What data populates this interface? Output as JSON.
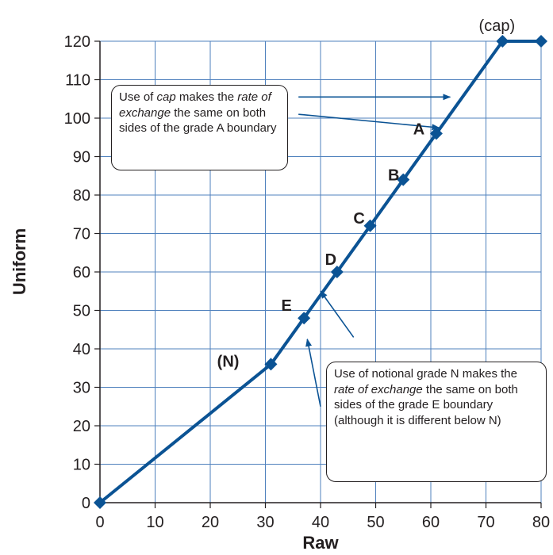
{
  "chart_data": {
    "type": "line",
    "xlabel": "Raw",
    "ylabel": "Uniform",
    "xlim": [
      0,
      80
    ],
    "ylim": [
      0,
      120
    ],
    "xticks": [
      0,
      10,
      20,
      30,
      40,
      50,
      60,
      70,
      80
    ],
    "yticks": [
      0,
      10,
      20,
      30,
      40,
      50,
      60,
      70,
      80,
      90,
      100,
      110,
      120
    ],
    "grid": true,
    "line_color": "#0b5394",
    "grid_color": "#4f81bd",
    "points": [
      {
        "x": 0,
        "y": 0,
        "label": ""
      },
      {
        "x": 31,
        "y": 36,
        "label": "(N)"
      },
      {
        "x": 37,
        "y": 48,
        "label": "E"
      },
      {
        "x": 43,
        "y": 60,
        "label": "D"
      },
      {
        "x": 49,
        "y": 72,
        "label": "C"
      },
      {
        "x": 55,
        "y": 84,
        "label": "B"
      },
      {
        "x": 61,
        "y": 96,
        "label": "A"
      },
      {
        "x": 73,
        "y": 120,
        "label": "(cap)"
      },
      {
        "x": 80,
        "y": 120,
        "label": ""
      }
    ],
    "annotations": {
      "cap_note": {
        "pre": "Use of ",
        "em1": "cap",
        "mid": " makes the ",
        "em2": "rate of exchange",
        "post": " the same on both sides of the grade A boundary"
      },
      "n_note": {
        "pre": "Use of notional grade N makes the ",
        "em": "rate of exchange",
        "post": " the same on both sides of the grade E boundary (although it is different below N)"
      }
    }
  }
}
